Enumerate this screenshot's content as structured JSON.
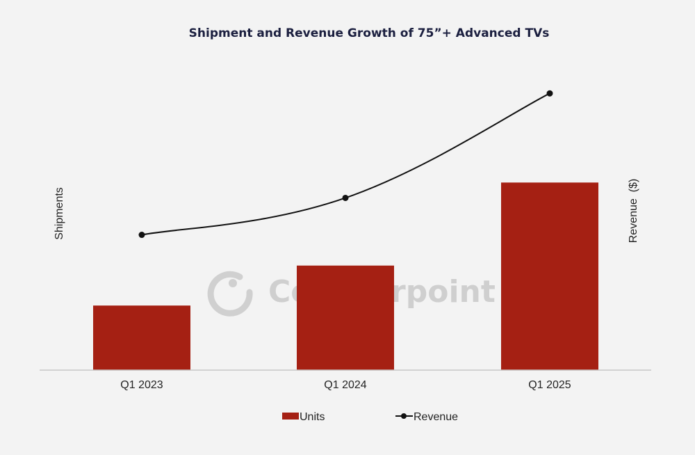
{
  "chart_data": {
    "type": "bar+line",
    "title": "Shipment and Revenue Growth of 75”+ Advanced TVs",
    "categories": [
      "Q1 2023",
      "Q1 2024",
      "Q1 2025"
    ],
    "series": [
      {
        "name": "Units",
        "kind": "bar",
        "axis": "left",
        "color": "#a52013",
        "values": [
          21,
          34,
          61
        ]
      },
      {
        "name": "Revenue",
        "kind": "line",
        "axis": "right",
        "color": "#111111",
        "values": [
          44,
          56,
          90
        ]
      }
    ],
    "ylabel": "Shipments",
    "y2label": "Revenue  ($)",
    "xlabel": "",
    "ylim": [
      0,
      100
    ],
    "y2lim": [
      0,
      100
    ],
    "grid": false,
    "legend_position": "bottom",
    "watermark": "Counterpoint"
  }
}
